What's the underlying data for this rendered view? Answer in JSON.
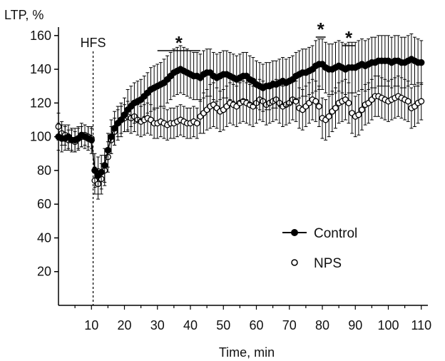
{
  "chart_data": {
    "type": "line",
    "ylabel": "LTP, %",
    "xlabel": "Time, min",
    "xlim": [
      0,
      112
    ],
    "ylim": [
      0,
      165
    ],
    "x_ticks": [
      10,
      20,
      30,
      40,
      50,
      60,
      70,
      80,
      90,
      100,
      110
    ],
    "y_ticks": [
      20,
      40,
      60,
      80,
      100,
      120,
      140,
      160
    ],
    "event": {
      "label": "HFS",
      "x": 10.5
    },
    "significance": [
      {
        "label": "*",
        "x_range": [
          30,
          43
        ]
      },
      {
        "label": "*",
        "x_range": [
          78,
          81
        ]
      },
      {
        "label": "*",
        "x_range": [
          86,
          90
        ]
      }
    ],
    "legend_position": "lower-right",
    "series": [
      {
        "name": "Control",
        "marker": "filled-circle",
        "color": "#000000",
        "x": [
          0,
          1,
          2,
          3,
          4,
          5,
          6,
          7,
          8,
          9,
          10,
          11,
          12,
          13,
          14,
          15,
          16,
          17,
          18,
          19,
          20,
          21,
          22,
          23,
          24,
          25,
          26,
          27,
          28,
          29,
          30,
          31,
          32,
          33,
          34,
          35,
          36,
          37,
          38,
          39,
          40,
          41,
          42,
          43,
          44,
          45,
          46,
          47,
          48,
          49,
          50,
          51,
          52,
          53,
          54,
          55,
          56,
          57,
          58,
          59,
          60,
          61,
          62,
          63,
          64,
          65,
          66,
          67,
          68,
          69,
          70,
          71,
          72,
          73,
          74,
          75,
          76,
          77,
          78,
          79,
          80,
          81,
          82,
          83,
          84,
          85,
          86,
          87,
          88,
          89,
          90,
          91,
          92,
          93,
          94,
          95,
          96,
          97,
          98,
          99,
          100,
          101,
          102,
          103,
          104,
          105,
          106,
          107,
          108,
          109,
          110
        ],
        "values": [
          100,
          99,
          99,
          100,
          98,
          98,
          99,
          101,
          100,
          99,
          98,
          80,
          77,
          79,
          83,
          92,
          100,
          105,
          108,
          110,
          113,
          116,
          118,
          120,
          121,
          122,
          124,
          126,
          128,
          129,
          130,
          131,
          132,
          134,
          136,
          138,
          139,
          140,
          139,
          138,
          137,
          136,
          136,
          135,
          137,
          138,
          138,
          136,
          135,
          136,
          137,
          137,
          136,
          135,
          134,
          135,
          136,
          136,
          134,
          133,
          131,
          130,
          129,
          130,
          130,
          131,
          131,
          132,
          133,
          132,
          133,
          134,
          136,
          137,
          138,
          138,
          139,
          140,
          142,
          143,
          143,
          141,
          140,
          140,
          141,
          142,
          141,
          140,
          141,
          141,
          141,
          142,
          143,
          142,
          143,
          144,
          144,
          145,
          145,
          145,
          145,
          144,
          145,
          145,
          144,
          144,
          145,
          146,
          145,
          144,
          144
        ],
        "error": [
          8,
          8,
          7,
          7,
          7,
          7,
          7,
          7,
          7,
          7,
          8,
          10,
          11,
          10,
          10,
          10,
          10,
          10,
          10,
          10,
          10,
          12,
          12,
          12,
          12,
          12,
          12,
          12,
          13,
          13,
          13,
          13,
          14,
          14,
          14,
          14,
          14,
          14,
          14,
          14,
          14,
          14,
          14,
          14,
          14,
          14,
          14,
          14,
          14,
          14,
          14,
          14,
          14,
          14,
          14,
          14,
          14,
          14,
          14,
          14,
          14,
          14,
          14,
          14,
          14,
          14,
          14,
          14,
          14,
          14,
          14,
          14,
          14,
          14,
          14,
          14,
          14,
          14,
          15,
          15,
          15,
          15,
          15,
          15,
          15,
          15,
          15,
          15,
          15,
          15,
          15,
          15,
          15,
          15,
          15,
          15,
          15,
          15,
          15,
          15,
          15,
          15,
          15,
          15,
          15,
          15,
          15,
          15,
          14,
          14,
          13
        ]
      },
      {
        "name": "NPS",
        "marker": "open-circle",
        "color": "#000000",
        "x": [
          0,
          1,
          2,
          3,
          4,
          5,
          6,
          7,
          8,
          9,
          10,
          11,
          12,
          13,
          14,
          15,
          16,
          17,
          18,
          19,
          20,
          21,
          22,
          23,
          24,
          25,
          26,
          27,
          28,
          29,
          30,
          31,
          32,
          33,
          34,
          35,
          36,
          37,
          38,
          39,
          40,
          41,
          42,
          43,
          44,
          45,
          46,
          47,
          48,
          49,
          50,
          51,
          52,
          53,
          54,
          55,
          56,
          57,
          58,
          59,
          60,
          61,
          62,
          63,
          64,
          65,
          66,
          67,
          68,
          69,
          70,
          71,
          72,
          73,
          74,
          75,
          76,
          77,
          78,
          79,
          80,
          81,
          82,
          83,
          84,
          85,
          86,
          87,
          88,
          89,
          90,
          91,
          92,
          93,
          94,
          95,
          96,
          97,
          98,
          99,
          100,
          101,
          102,
          103,
          104,
          105,
          106,
          107,
          108,
          109,
          110
        ],
        "values": [
          106,
          102,
          101,
          98,
          98,
          97,
          99,
          100,
          101,
          100,
          99,
          74,
          72,
          75,
          80,
          88,
          98,
          103,
          108,
          110,
          111,
          112,
          111,
          112,
          110,
          109,
          110,
          111,
          110,
          108,
          108,
          109,
          108,
          107,
          108,
          108,
          109,
          110,
          109,
          108,
          108,
          109,
          108,
          112,
          114,
          116,
          118,
          119,
          117,
          115,
          116,
          118,
          120,
          119,
          118,
          120,
          121,
          120,
          119,
          118,
          120,
          122,
          121,
          119,
          120,
          121,
          122,
          120,
          118,
          119,
          120,
          122,
          121,
          117,
          116,
          118,
          120,
          122,
          121,
          118,
          111,
          110,
          112,
          115,
          117,
          120,
          121,
          122,
          120,
          114,
          112,
          113,
          116,
          119,
          120,
          122,
          124,
          124,
          123,
          122,
          121,
          122,
          123,
          124,
          123,
          122,
          121,
          117,
          118,
          120,
          121
        ],
        "error": [
          8,
          7,
          6,
          6,
          6,
          6,
          6,
          6,
          6,
          6,
          6,
          8,
          9,
          9,
          9,
          9,
          8,
          8,
          8,
          8,
          8,
          9,
          9,
          9,
          9,
          9,
          9,
          9,
          9,
          9,
          9,
          9,
          9,
          9,
          9,
          9,
          9,
          9,
          9,
          9,
          9,
          9,
          9,
          10,
          12,
          12,
          13,
          13,
          12,
          12,
          12,
          12,
          12,
          12,
          12,
          12,
          12,
          12,
          12,
          12,
          12,
          12,
          12,
          12,
          12,
          12,
          12,
          12,
          12,
          12,
          12,
          12,
          12,
          12,
          12,
          12,
          12,
          12,
          12,
          12,
          12,
          12,
          12,
          12,
          12,
          12,
          12,
          12,
          12,
          12,
          12,
          12,
          12,
          12,
          12,
          12,
          12,
          12,
          12,
          12,
          12,
          12,
          12,
          12,
          12,
          12,
          12,
          12,
          12,
          12,
          11
        ]
      }
    ]
  }
}
